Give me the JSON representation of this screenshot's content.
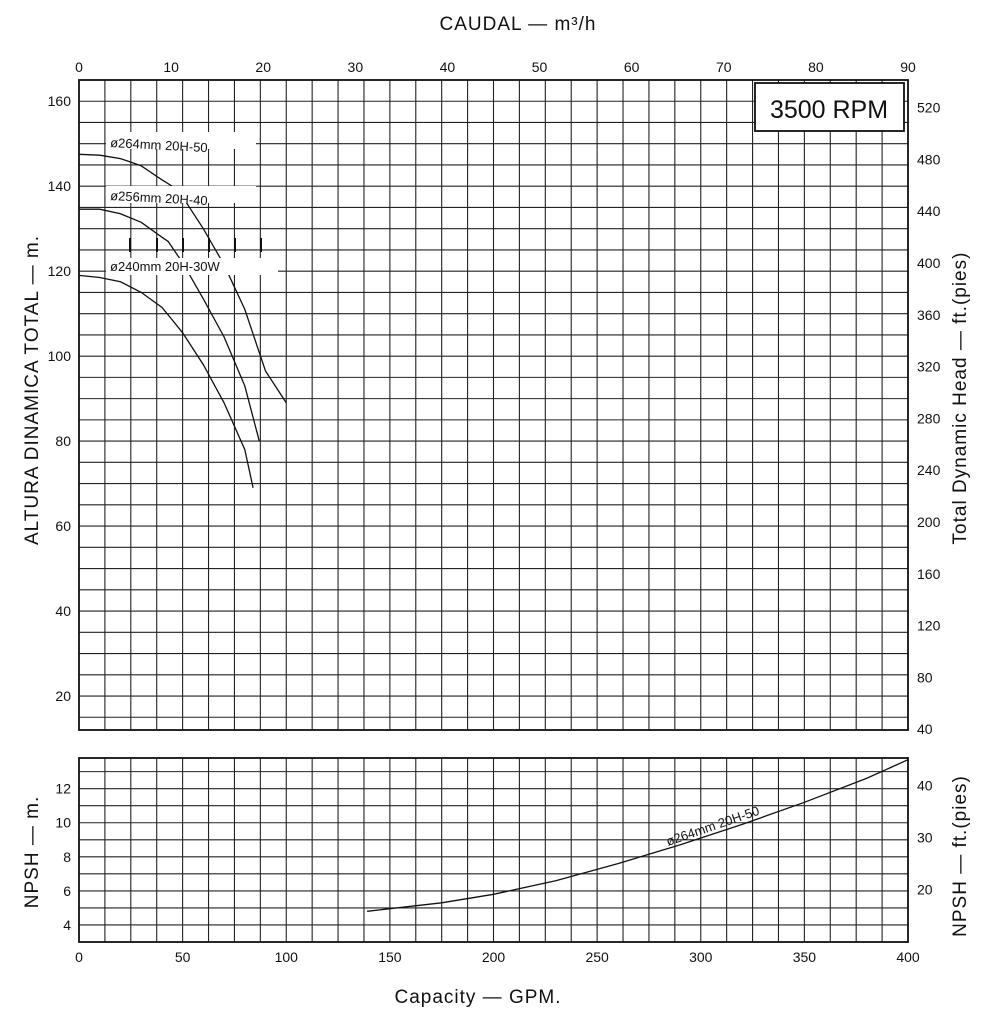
{
  "chart_data": [
    {
      "type": "line",
      "title": "",
      "top_xlabel": "CAUDAL  — m³/h",
      "top_x_ticks": [
        "0",
        "10",
        "20",
        "30",
        "40",
        "50",
        "60",
        "70",
        "80",
        "90"
      ],
      "top_xlim": [
        0,
        90
      ],
      "ylabel_left": "ALTURA DINAMICA TOTAL  —  m.",
      "ylabel_right": "Total Dynamic Head  —  ft.(pies)",
      "ylim": [
        12,
        165
      ],
      "y_ticks_left": [
        "20",
        "40",
        "60",
        "80",
        "100",
        "120",
        "140",
        "160"
      ],
      "y_ticks_right": [
        "40",
        "80",
        "120",
        "160",
        "200",
        "240",
        "280",
        "320",
        "360",
        "400",
        "440",
        "480",
        "520"
      ],
      "annotation": "3500 RPM",
      "grid": true,
      "series": [
        {
          "name": "ø264mm  20H-50",
          "points": [
            [
              0,
              147.5
            ],
            [
              10,
              147.3
            ],
            [
              20,
              146.5
            ],
            [
              30,
              144.8
            ],
            [
              40,
              141.5
            ],
            [
              45,
              140
            ],
            [
              50,
              137.5
            ],
            [
              60,
              130
            ],
            [
              70,
              121.5
            ],
            [
              80,
              111
            ],
            [
              90,
              96.5
            ],
            [
              100,
              89
            ]
          ]
        },
        {
          "name": "ø256mm  20H-40",
          "points": [
            [
              0,
              134.6
            ],
            [
              10,
              134.6
            ],
            [
              20,
              133.5
            ],
            [
              30,
              131.5
            ],
            [
              40,
              128
            ],
            [
              43,
              127
            ],
            [
              50,
              122
            ],
            [
              60,
              113.5
            ],
            [
              70,
              104.5
            ],
            [
              80,
              93
            ],
            [
              87,
              80
            ]
          ]
        },
        {
          "name": "ø240mm  20H-30W",
          "points": [
            [
              0,
              119
            ],
            [
              10,
              118.5
            ],
            [
              20,
              117.5
            ],
            [
              30,
              115
            ],
            [
              40,
              111.5
            ],
            [
              45,
              108.5
            ],
            [
              50,
              105.5
            ],
            [
              60,
              98
            ],
            [
              70,
              89
            ],
            [
              80,
              78
            ],
            [
              84,
              69
            ]
          ]
        }
      ]
    },
    {
      "type": "line",
      "xlabel": "Capacity  —  GPM.",
      "x_ticks": [
        "0",
        "50",
        "100",
        "150",
        "200",
        "250",
        "300",
        "350",
        "400"
      ],
      "xlim": [
        0,
        400
      ],
      "ylabel_left": "NPSH  —  m.",
      "ylabel_right": "NPSH  —  ft.(pies)",
      "ylim": [
        3,
        13.8
      ],
      "y_ticks_left": [
        "4",
        "6",
        "8",
        "10",
        "12"
      ],
      "y_ticks_right": [
        "20",
        "30",
        "40"
      ],
      "grid": true,
      "series": [
        {
          "name": "ø264mm  20H-50",
          "points": [
            [
              139,
              4.8
            ],
            [
              175,
              5.3
            ],
            [
              200,
              5.8
            ],
            [
              230,
              6.6
            ],
            [
              260,
              7.6
            ],
            [
              290,
              8.7
            ],
            [
              320,
              9.9
            ],
            [
              350,
              11.2
            ],
            [
              380,
              12.6
            ],
            [
              400,
              13.7
            ]
          ]
        }
      ]
    }
  ]
}
